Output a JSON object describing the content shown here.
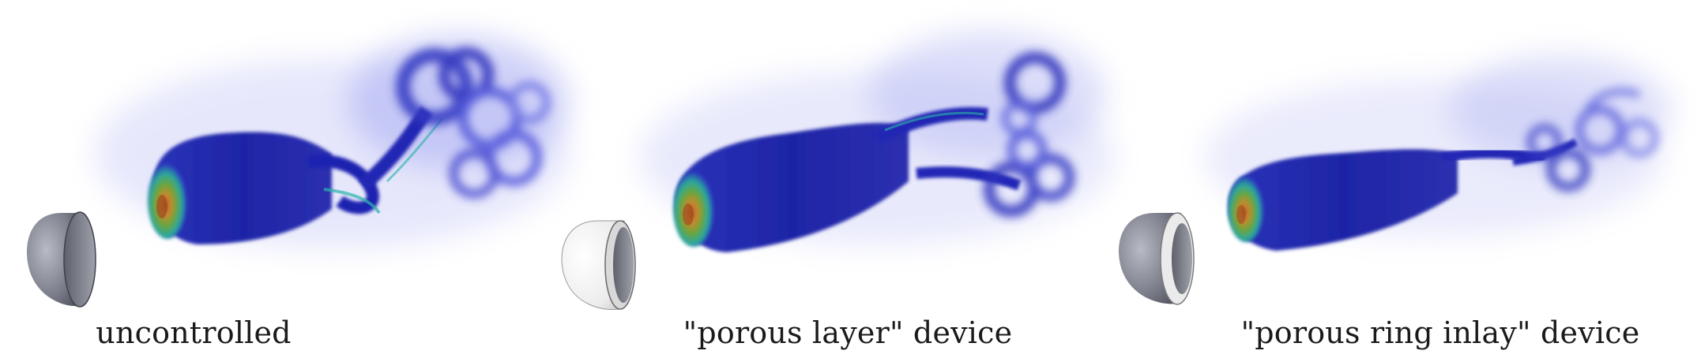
{
  "panels": [
    {
      "id": "uncontrolled",
      "caption": "uncontrolled",
      "device": "none"
    },
    {
      "id": "porous-layer",
      "caption": "\"porous layer\" device",
      "device": "porous-layer"
    },
    {
      "id": "porous-ring-inlay",
      "caption": "\"porous ring inlay\" device",
      "device": "porous-ring-inlay"
    }
  ],
  "colors": {
    "wake_deep_blue": "#1b1fa8",
    "wake_mid_blue": "#3a3fd0",
    "wake_light_violet": "#8a8ff0",
    "surface_green": "#5aa84a",
    "surface_orange": "#d88a3a",
    "surface_teal": "#2bb7b0",
    "hemisphere_gray": "#6f7380",
    "device_white": "#f2f2f2"
  }
}
